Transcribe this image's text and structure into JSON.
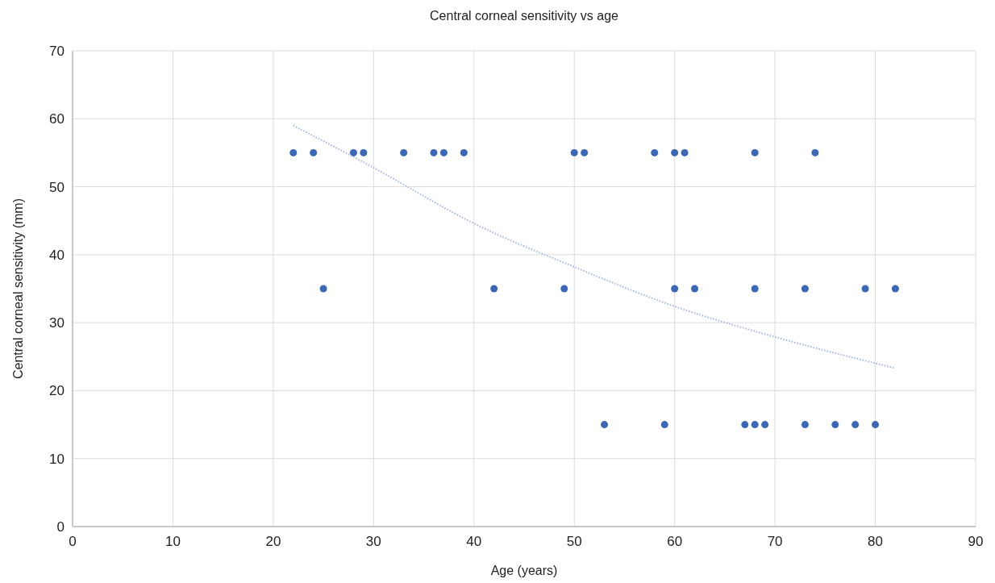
{
  "chart_data": {
    "type": "scatter",
    "title": "Central corneal sensitivity vs age",
    "xlabel": "Age (years)",
    "ylabel": "Central corneal sensitivity (mm)",
    "xlim": [
      0,
      90
    ],
    "xticks": [
      0,
      10,
      20,
      30,
      40,
      50,
      60,
      70,
      80,
      90
    ],
    "ylim": [
      0,
      70
    ],
    "yticks": [
      0,
      10,
      20,
      30,
      40,
      50,
      60,
      70
    ],
    "grid": true,
    "marker": "circle",
    "series": [
      {
        "color": "#3a67b8",
        "x": [
          22,
          24,
          28,
          29,
          33,
          36,
          37,
          39,
          50,
          51,
          58,
          60,
          61,
          68,
          74,
          25,
          42,
          49,
          60,
          62,
          68,
          73,
          79,
          82,
          53,
          59,
          67,
          68,
          69,
          73,
          76,
          78,
          80
        ],
        "values": [
          55,
          55,
          55,
          55,
          55,
          55,
          55,
          55,
          55,
          55,
          55,
          55,
          55,
          55,
          55,
          35,
          35,
          35,
          35,
          35,
          35,
          35,
          35,
          35,
          15,
          15,
          15,
          15,
          15,
          15,
          15,
          15,
          15
        ]
      },
      {
        "type": "line",
        "color": "#9fb6e3",
        "line_style": "dotted",
        "marker": "none",
        "x": [
          22,
          30,
          40,
          50,
          60,
          70,
          82
        ],
        "values": [
          59,
          52.8,
          44.6,
          38.2,
          32.4,
          27.9,
          23.3
        ]
      }
    ]
  }
}
